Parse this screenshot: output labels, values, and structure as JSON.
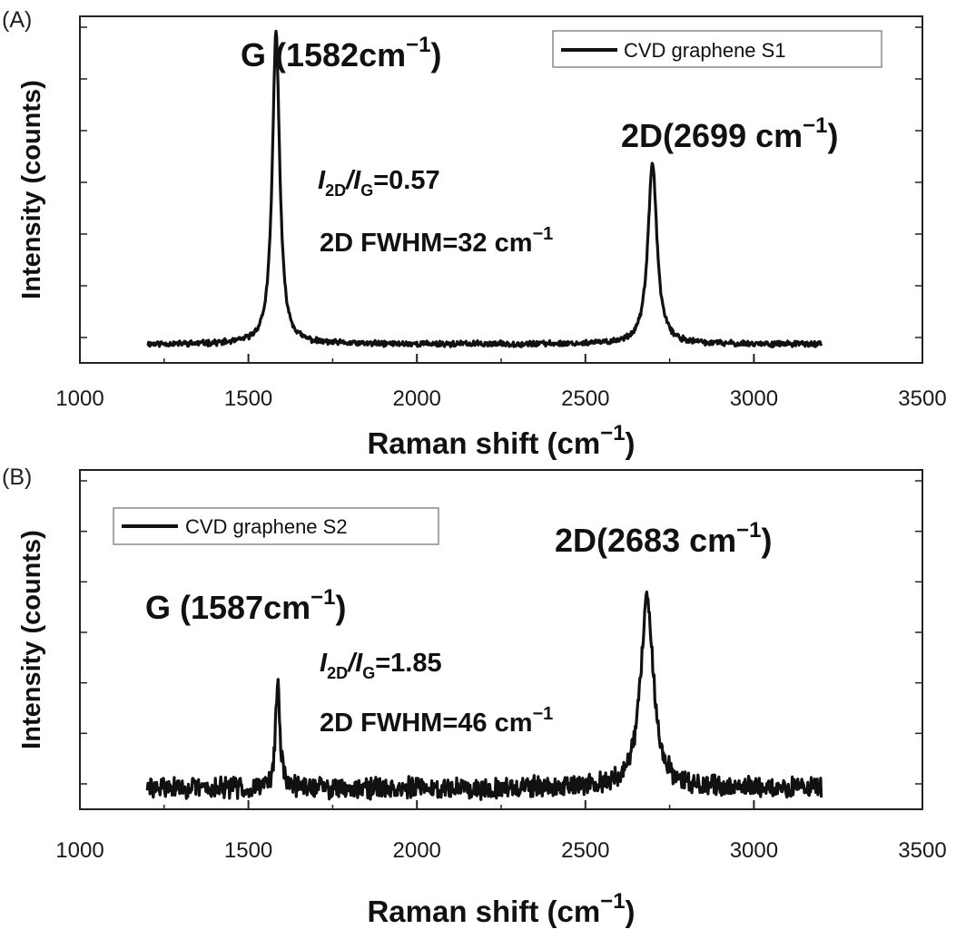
{
  "chart_data": [
    {
      "panel_label": "(A)",
      "type": "line",
      "xlabel": "Raman  shift (cm",
      "xlabel_sup": "−1",
      "xlabel_close": ")",
      "ylabel": "Intensity (counts)",
      "xlim": [
        1000,
        3500
      ],
      "ylim": [
        -0.06,
        1.05
      ],
      "xticks": [
        1000,
        1500,
        2000,
        2500,
        3000,
        3500
      ],
      "xtick_labels": [
        "1000",
        "1500",
        "2000",
        "2500",
        "3000",
        "3500"
      ],
      "yaxis_tick_labels": "none",
      "legend": {
        "label": "CVD graphene S1",
        "position": "top-right"
      },
      "series": [
        {
          "name": "CVD graphene S1",
          "x_range": [
            1200,
            3200
          ],
          "baseline": 0.0,
          "noise_amplitude": 0.008,
          "peaks": [
            {
              "name": "G",
              "center": 1582,
              "height": 1.0,
              "fwhm": 26
            },
            {
              "name": "2D",
              "center": 2699,
              "height": 0.58,
              "fwhm": 32
            }
          ]
        }
      ],
      "annotations": {
        "g_peak": {
          "text": "G (1582cm",
          "sup": "−1",
          "close": ")"
        },
        "d2_peak": {
          "text": "2D(2699 cm",
          "sup": "−1",
          "close": ")"
        },
        "ratio": {
          "i1": "I",
          "s1": "2D",
          "slash": "/",
          "i2": "I",
          "s2": "G",
          "value": "=0.57"
        },
        "fwhm": {
          "text": "2D FWHM=32 cm",
          "sup": "−1"
        }
      }
    },
    {
      "panel_label": "(B)",
      "type": "line",
      "xlabel": "Raman  shift (cm",
      "xlabel_sup": "−1",
      "xlabel_close": ")",
      "ylabel": "Intensity (counts)",
      "xlim": [
        1000,
        3500
      ],
      "ylim": [
        -0.08,
        1.2
      ],
      "xticks": [
        1000,
        1500,
        2000,
        2500,
        3000,
        3500
      ],
      "xtick_labels": [
        "1000",
        "1500",
        "2000",
        "2500",
        "3000",
        "3500"
      ],
      "yaxis_tick_labels": "none",
      "legend": {
        "label": "CVD graphene S2",
        "position": "top-left"
      },
      "series": [
        {
          "name": "CVD graphene S2",
          "x_range": [
            1200,
            3200
          ],
          "baseline": 0.0,
          "noise_amplitude": 0.035,
          "peaks": [
            {
              "name": "G",
              "center": 1587,
              "height": 0.38,
              "fwhm": 16
            },
            {
              "name": "2D",
              "center": 2683,
              "height": 0.71,
              "fwhm": 46
            }
          ]
        }
      ],
      "annotations": {
        "g_peak": {
          "text": "G (1587cm",
          "sup": "−1",
          "close": ")"
        },
        "d2_peak": {
          "text": "2D(2683 cm",
          "sup": "−1",
          "close": ")"
        },
        "ratio": {
          "i1": "I",
          "s1": "2D",
          "slash": "/",
          "i2": "I",
          "s2": "G",
          "value": "=1.85"
        },
        "fwhm": {
          "text": "2D FWHM=46 cm",
          "sup": "−1"
        }
      }
    }
  ]
}
